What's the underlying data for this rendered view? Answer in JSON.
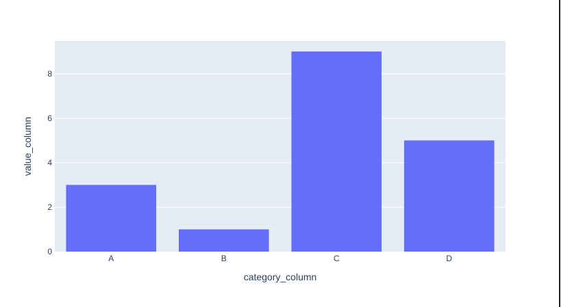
{
  "chart_data": {
    "type": "bar",
    "categories": [
      "A",
      "B",
      "C",
      "D"
    ],
    "values": [
      3,
      1,
      9,
      5
    ],
    "xlabel": "category_column",
    "ylabel": "value_column",
    "ylim": [
      0,
      9.47
    ],
    "yticks": [
      0,
      2,
      4,
      6,
      8
    ],
    "grid": true,
    "colors": {
      "bar": "#636efa",
      "plot_background": "#e5ecf6",
      "gridline": "#ffffff",
      "text": "#2a3f5f"
    }
  }
}
